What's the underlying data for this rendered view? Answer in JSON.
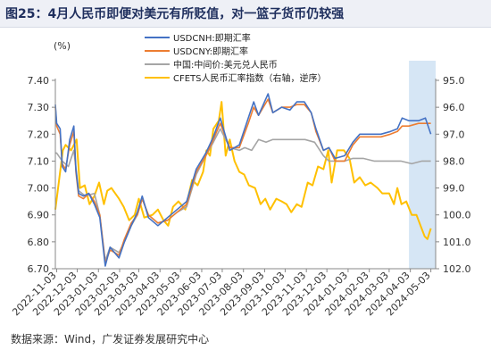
{
  "title": "图25：4月人民币即便对美元有所贬值，对一篮子货币仍较强",
  "source": "数据来源：Wind，广发证券发展研究中心",
  "chart_data": {
    "type": "line",
    "left_unit": "(%)",
    "left_axis": {
      "ylim": [
        6.7,
        7.4
      ],
      "ticks": [
        "7.40",
        "7.30",
        "7.20",
        "7.10",
        "7.00",
        "6.90",
        "6.80",
        "6.70"
      ]
    },
    "right_axis": {
      "ylim": [
        95.0,
        102.0
      ],
      "reversed": true,
      "ticks": [
        "95.0",
        "96.0",
        "97.0",
        "98.0",
        "99.0",
        "100.0",
        "101.0",
        "102.0"
      ]
    },
    "x_ticks": [
      "2022-11-03",
      "2022-12-03",
      "2023-01-03",
      "2023-02-03",
      "2023-03-03",
      "2023-04-03",
      "2023-05-03",
      "2023-06-03",
      "2023-07-03",
      "2023-08-03",
      "2023-09-03",
      "2023-10-03",
      "2023-11-03",
      "2023-12-03",
      "2024-01-03",
      "2024-02-03",
      "2024-03-03",
      "2024-04-03",
      "2024-05-03"
    ],
    "x_range": [
      "2022-11-01",
      "2024-05-10"
    ],
    "highlight": {
      "from": "2024-04-01",
      "to": "2024-05-10",
      "color": "#d6e6f5"
    },
    "series": [
      {
        "name": "USDCNH:即期汇率",
        "color": "#4472c4",
        "axis": "left",
        "points": [
          [
            "2022-11-01",
            7.31
          ],
          [
            "2022-11-03",
            7.24
          ],
          [
            "2022-11-08",
            7.22
          ],
          [
            "2022-11-11",
            7.08
          ],
          [
            "2022-11-16",
            7.06
          ],
          [
            "2022-11-22",
            7.18
          ],
          [
            "2022-11-28",
            7.23
          ],
          [
            "2022-12-01",
            7.07
          ],
          [
            "2022-12-05",
            6.98
          ],
          [
            "2022-12-12",
            6.97
          ],
          [
            "2022-12-20",
            6.98
          ],
          [
            "2022-12-28",
            6.94
          ],
          [
            "2023-01-05",
            6.89
          ],
          [
            "2023-01-13",
            6.71
          ],
          [
            "2023-01-20",
            6.78
          ],
          [
            "2023-02-02",
            6.74
          ],
          [
            "2023-02-10",
            6.8
          ],
          [
            "2023-02-20",
            6.86
          ],
          [
            "2023-03-01",
            6.91
          ],
          [
            "2023-03-08",
            6.97
          ],
          [
            "2023-03-17",
            6.89
          ],
          [
            "2023-03-31",
            6.86
          ],
          [
            "2023-04-14",
            6.89
          ],
          [
            "2023-04-28",
            6.92
          ],
          [
            "2023-05-12",
            6.95
          ],
          [
            "2023-05-26",
            7.07
          ],
          [
            "2023-06-09",
            7.13
          ],
          [
            "2023-06-20",
            7.19
          ],
          [
            "2023-06-30",
            7.26
          ],
          [
            "2023-07-14",
            7.14
          ],
          [
            "2023-07-28",
            7.16
          ],
          [
            "2023-08-10",
            7.26
          ],
          [
            "2023-08-18",
            7.32
          ],
          [
            "2023-08-25",
            7.27
          ],
          [
            "2023-09-08",
            7.35
          ],
          [
            "2023-09-15",
            7.28
          ],
          [
            "2023-09-28",
            7.3
          ],
          [
            "2023-10-10",
            7.29
          ],
          [
            "2023-10-20",
            7.32
          ],
          [
            "2023-10-31",
            7.32
          ],
          [
            "2023-11-10",
            7.28
          ],
          [
            "2023-11-17",
            7.22
          ],
          [
            "2023-11-28",
            7.14
          ],
          [
            "2023-12-06",
            7.15
          ],
          [
            "2023-12-15",
            7.11
          ],
          [
            "2023-12-29",
            7.12
          ],
          [
            "2024-01-10",
            7.17
          ],
          [
            "2024-01-20",
            7.2
          ],
          [
            "2024-02-05",
            7.2
          ],
          [
            "2024-02-20",
            7.2
          ],
          [
            "2024-03-05",
            7.21
          ],
          [
            "2024-03-15",
            7.22
          ],
          [
            "2024-03-22",
            7.26
          ],
          [
            "2024-04-01",
            7.25
          ],
          [
            "2024-04-15",
            7.25
          ],
          [
            "2024-04-25",
            7.26
          ],
          [
            "2024-05-03",
            7.2
          ]
        ]
      },
      {
        "name": "USDCNY:即期汇率",
        "color": "#ed7d31",
        "axis": "left",
        "points": [
          [
            "2022-11-01",
            7.3
          ],
          [
            "2022-11-03",
            7.23
          ],
          [
            "2022-11-08",
            7.2
          ],
          [
            "2022-11-11",
            7.09
          ],
          [
            "2022-11-16",
            7.07
          ],
          [
            "2022-11-22",
            7.16
          ],
          [
            "2022-11-28",
            7.21
          ],
          [
            "2022-12-01",
            7.06
          ],
          [
            "2022-12-05",
            6.97
          ],
          [
            "2022-12-12",
            6.96
          ],
          [
            "2022-12-20",
            6.98
          ],
          [
            "2022-12-28",
            6.95
          ],
          [
            "2023-01-05",
            6.9
          ],
          [
            "2023-01-13",
            6.72
          ],
          [
            "2023-01-20",
            6.77
          ],
          [
            "2023-02-02",
            6.75
          ],
          [
            "2023-02-10",
            6.81
          ],
          [
            "2023-02-20",
            6.87
          ],
          [
            "2023-03-01",
            6.9
          ],
          [
            "2023-03-08",
            6.96
          ],
          [
            "2023-03-17",
            6.9
          ],
          [
            "2023-03-31",
            6.87
          ],
          [
            "2023-04-14",
            6.88
          ],
          [
            "2023-04-28",
            6.91
          ],
          [
            "2023-05-12",
            6.94
          ],
          [
            "2023-05-26",
            7.06
          ],
          [
            "2023-06-09",
            7.12
          ],
          [
            "2023-06-20",
            7.18
          ],
          [
            "2023-06-30",
            7.24
          ],
          [
            "2023-07-14",
            7.15
          ],
          [
            "2023-07-28",
            7.15
          ],
          [
            "2023-08-10",
            7.24
          ],
          [
            "2023-08-18",
            7.3
          ],
          [
            "2023-08-25",
            7.27
          ],
          [
            "2023-09-08",
            7.33
          ],
          [
            "2023-09-15",
            7.28
          ],
          [
            "2023-09-28",
            7.3
          ],
          [
            "2023-10-10",
            7.3
          ],
          [
            "2023-10-20",
            7.31
          ],
          [
            "2023-10-31",
            7.31
          ],
          [
            "2023-11-10",
            7.28
          ],
          [
            "2023-11-17",
            7.21
          ],
          [
            "2023-11-28",
            7.14
          ],
          [
            "2023-12-06",
            7.15
          ],
          [
            "2023-12-15",
            7.1
          ],
          [
            "2023-12-29",
            7.1
          ],
          [
            "2024-01-10",
            7.16
          ],
          [
            "2024-01-20",
            7.19
          ],
          [
            "2024-02-05",
            7.19
          ],
          [
            "2024-02-20",
            7.19
          ],
          [
            "2024-03-05",
            7.2
          ],
          [
            "2024-03-15",
            7.21
          ],
          [
            "2024-03-22",
            7.23
          ],
          [
            "2024-04-01",
            7.23
          ],
          [
            "2024-04-15",
            7.24
          ],
          [
            "2024-04-25",
            7.24
          ],
          [
            "2024-05-03",
            7.24
          ]
        ]
      },
      {
        "name": "中国:中间价:美元兑人民币",
        "color": "#a5a5a5",
        "axis": "left",
        "points": [
          [
            "2022-11-01",
            7.13
          ],
          [
            "2022-11-03",
            7.13
          ],
          [
            "2022-11-11",
            7.1
          ],
          [
            "2022-11-20",
            7.08
          ],
          [
            "2022-11-28",
            7.14
          ],
          [
            "2022-12-05",
            6.99
          ],
          [
            "2022-12-15",
            6.97
          ],
          [
            "2022-12-28",
            6.98
          ],
          [
            "2023-01-05",
            6.9
          ],
          [
            "2023-01-13",
            6.73
          ],
          [
            "2023-01-20",
            6.78
          ],
          [
            "2023-02-02",
            6.76
          ],
          [
            "2023-02-10",
            6.8
          ],
          [
            "2023-02-20",
            6.86
          ],
          [
            "2023-03-01",
            6.9
          ],
          [
            "2023-03-08",
            6.96
          ],
          [
            "2023-03-17",
            6.9
          ],
          [
            "2023-03-31",
            6.87
          ],
          [
            "2023-04-14",
            6.88
          ],
          [
            "2023-04-28",
            6.91
          ],
          [
            "2023-05-12",
            6.93
          ],
          [
            "2023-05-26",
            7.05
          ],
          [
            "2023-06-09",
            7.12
          ],
          [
            "2023-06-20",
            7.17
          ],
          [
            "2023-06-30",
            7.22
          ],
          [
            "2023-07-14",
            7.15
          ],
          [
            "2023-07-28",
            7.14
          ],
          [
            "2023-08-05",
            7.15
          ],
          [
            "2023-08-15",
            7.14
          ],
          [
            "2023-08-25",
            7.18
          ],
          [
            "2023-09-05",
            7.17
          ],
          [
            "2023-09-15",
            7.18
          ],
          [
            "2023-10-01",
            7.18
          ],
          [
            "2023-10-15",
            7.18
          ],
          [
            "2023-11-01",
            7.18
          ],
          [
            "2023-11-15",
            7.17
          ],
          [
            "2023-11-28",
            7.12
          ],
          [
            "2023-12-06",
            7.1
          ],
          [
            "2023-12-15",
            7.1
          ],
          [
            "2023-12-29",
            7.1
          ],
          [
            "2024-01-10",
            7.11
          ],
          [
            "2024-01-25",
            7.11
          ],
          [
            "2024-02-10",
            7.1
          ],
          [
            "2024-03-01",
            7.1
          ],
          [
            "2024-03-20",
            7.1
          ],
          [
            "2024-04-05",
            7.09
          ],
          [
            "2024-04-20",
            7.1
          ],
          [
            "2024-05-03",
            7.1
          ]
        ]
      },
      {
        "name": "CFETS人民币汇率指数（右轴，逆序）",
        "color": "#ffc000",
        "axis": "right",
        "points": [
          [
            "2022-11-01",
            99.8
          ],
          [
            "2022-11-04",
            99.2
          ],
          [
            "2022-11-12",
            97.6
          ],
          [
            "2022-11-16",
            97.4
          ],
          [
            "2022-11-24",
            97.6
          ],
          [
            "2022-12-02",
            97.2
          ],
          [
            "2022-12-07",
            99.0
          ],
          [
            "2022-12-14",
            98.9
          ],
          [
            "2022-12-21",
            99.6
          ],
          [
            "2022-12-28",
            99.3
          ],
          [
            "2023-01-04",
            98.8
          ],
          [
            "2023-01-11",
            99.6
          ],
          [
            "2023-01-16",
            99.1
          ],
          [
            "2023-01-22",
            99.0
          ],
          [
            "2023-02-02",
            99.4
          ],
          [
            "2023-02-09",
            99.7
          ],
          [
            "2023-02-17",
            100.2
          ],
          [
            "2023-02-25",
            100.0
          ],
          [
            "2023-03-03",
            99.4
          ],
          [
            "2023-03-11",
            100.1
          ],
          [
            "2023-03-23",
            100.0
          ],
          [
            "2023-03-31",
            99.8
          ],
          [
            "2023-04-08",
            100.2
          ],
          [
            "2023-04-15",
            100.4
          ],
          [
            "2023-04-22",
            99.7
          ],
          [
            "2023-04-30",
            99.5
          ],
          [
            "2023-05-10",
            99.8
          ],
          [
            "2023-05-20",
            98.7
          ],
          [
            "2023-05-28",
            98.9
          ],
          [
            "2023-06-05",
            98.4
          ],
          [
            "2023-06-10",
            97.6
          ],
          [
            "2023-06-15",
            97.8
          ],
          [
            "2023-06-20",
            96.8
          ],
          [
            "2023-06-28",
            96.5
          ],
          [
            "2023-07-02",
            95.8
          ],
          [
            "2023-07-08",
            97.8
          ],
          [
            "2023-07-14",
            97.2
          ],
          [
            "2023-07-21",
            98.0
          ],
          [
            "2023-07-28",
            98.4
          ],
          [
            "2023-08-04",
            98.5
          ],
          [
            "2023-08-11",
            98.9
          ],
          [
            "2023-08-20",
            99.0
          ],
          [
            "2023-08-28",
            99.6
          ],
          [
            "2023-09-04",
            99.4
          ],
          [
            "2023-09-11",
            99.8
          ],
          [
            "2023-09-20",
            99.4
          ],
          [
            "2023-09-28",
            99.5
          ],
          [
            "2023-10-05",
            99.6
          ],
          [
            "2023-10-12",
            99.9
          ],
          [
            "2023-10-20",
            99.6
          ],
          [
            "2023-10-27",
            99.7
          ],
          [
            "2023-11-05",
            98.8
          ],
          [
            "2023-11-12",
            98.9
          ],
          [
            "2023-11-20",
            98.2
          ],
          [
            "2023-11-28",
            98.3
          ],
          [
            "2023-12-05",
            97.6
          ],
          [
            "2023-12-10",
            98.8
          ],
          [
            "2023-12-18",
            97.6
          ],
          [
            "2023-12-28",
            97.6
          ],
          [
            "2024-01-05",
            97.9
          ],
          [
            "2024-01-12",
            98.8
          ],
          [
            "2024-01-20",
            98.6
          ],
          [
            "2024-01-28",
            98.9
          ],
          [
            "2024-02-05",
            98.8
          ],
          [
            "2024-02-15",
            99.0
          ],
          [
            "2024-02-22",
            99.2
          ],
          [
            "2024-03-03",
            99.2
          ],
          [
            "2024-03-10",
            99.6
          ],
          [
            "2024-03-15",
            99.0
          ],
          [
            "2024-03-21",
            99.6
          ],
          [
            "2024-03-28",
            99.5
          ],
          [
            "2024-04-05",
            100.0
          ],
          [
            "2024-04-12",
            100.0
          ],
          [
            "2024-04-18",
            100.4
          ],
          [
            "2024-04-24",
            100.8
          ],
          [
            "2024-04-28",
            100.9
          ],
          [
            "2024-05-03",
            100.5
          ]
        ]
      }
    ]
  }
}
